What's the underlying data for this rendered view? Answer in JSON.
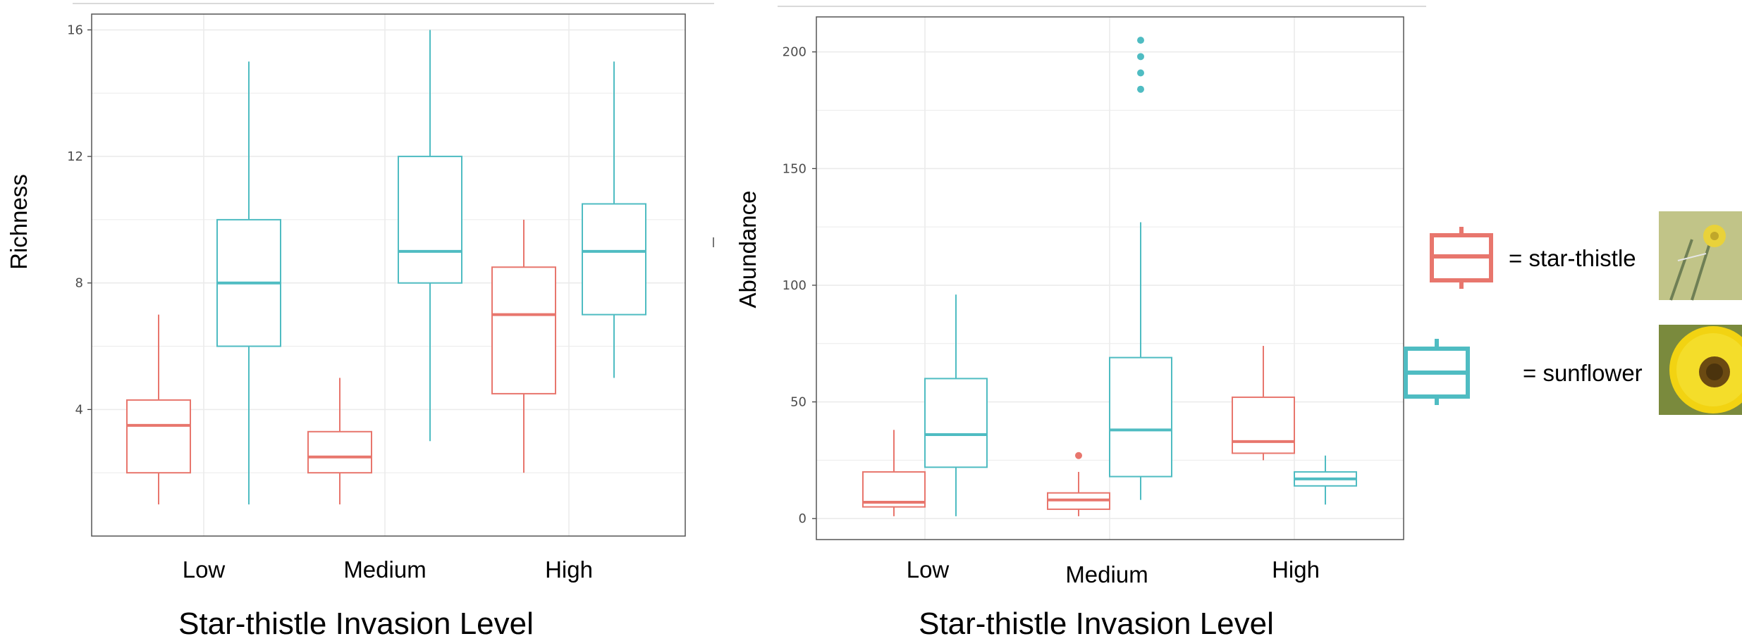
{
  "colors": {
    "star_thistle": "#e8766d",
    "sunflower": "#4fbcc2",
    "grid": "#ebebeb",
    "panel_border": "#555555"
  },
  "chart_data": [
    {
      "type": "box",
      "ylabel": "Richness",
      "xlabel": "Star-thistle Invasion Level",
      "categories": [
        "Low",
        "Medium",
        "High"
      ],
      "ylim": [
        0,
        16.5
      ],
      "yticks": [
        4,
        8,
        12,
        16
      ],
      "grid": true,
      "series": [
        {
          "key": "star_thistle",
          "boxes": [
            {
              "lower_whisker": 1,
              "q1": 2,
              "median": 3.5,
              "q3": 4.3,
              "upper_whisker": 7,
              "outliers": []
            },
            {
              "lower_whisker": 1,
              "q1": 2,
              "median": 2.5,
              "q3": 3.3,
              "upper_whisker": 5,
              "outliers": []
            },
            {
              "lower_whisker": 2,
              "q1": 4.5,
              "median": 7,
              "q3": 8.5,
              "upper_whisker": 10,
              "outliers": []
            }
          ]
        },
        {
          "key": "sunflower",
          "boxes": [
            {
              "lower_whisker": 1,
              "q1": 6,
              "median": 8,
              "q3": 10,
              "upper_whisker": 15,
              "outliers": []
            },
            {
              "lower_whisker": 3,
              "q1": 8,
              "median": 9,
              "q3": 12,
              "upper_whisker": 16,
              "outliers": []
            },
            {
              "lower_whisker": 5,
              "q1": 7,
              "median": 9,
              "q3": 10.5,
              "upper_whisker": 15,
              "outliers": []
            }
          ]
        }
      ]
    },
    {
      "type": "box",
      "ylabel": "Abundance",
      "xlabel": "Star-thistle Invasion Level",
      "categories": [
        "Low",
        "Medium",
        "High"
      ],
      "ylim": [
        -9,
        215
      ],
      "yticks": [
        0,
        50,
        100,
        150,
        200
      ],
      "grid": true,
      "series": [
        {
          "key": "star_thistle",
          "boxes": [
            {
              "lower_whisker": 1,
              "q1": 5,
              "median": 7,
              "q3": 20,
              "upper_whisker": 38,
              "outliers": []
            },
            {
              "lower_whisker": 1,
              "q1": 4,
              "median": 8,
              "q3": 11,
              "upper_whisker": 20,
              "outliers": [
                27
              ]
            },
            {
              "lower_whisker": 25,
              "q1": 28,
              "median": 33,
              "q3": 52,
              "upper_whisker": 74,
              "outliers": []
            }
          ]
        },
        {
          "key": "sunflower",
          "boxes": [
            {
              "lower_whisker": 1,
              "q1": 22,
              "median": 36,
              "q3": 60,
              "upper_whisker": 96,
              "outliers": []
            },
            {
              "lower_whisker": 8,
              "q1": 18,
              "median": 38,
              "q3": 69,
              "upper_whisker": 127,
              "outliers": [
                184,
                191,
                198,
                205
              ]
            },
            {
              "lower_whisker": 6,
              "q1": 14,
              "median": 17,
              "q3": 20,
              "upper_whisker": 27,
              "outliers": []
            }
          ]
        }
      ]
    }
  ],
  "legend": {
    "star_thistle_label": "= star-thistle",
    "sunflower_label": "= sunflower"
  }
}
